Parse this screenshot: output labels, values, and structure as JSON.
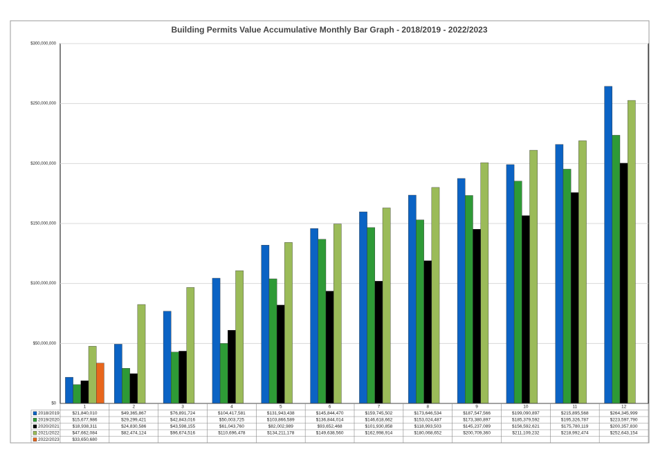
{
  "chart_data": {
    "type": "bar",
    "title": "Building Permits Value Accumulative Monthly Bar Graph - 2018/2019 - 2022/2023",
    "categories": [
      "1",
      "2",
      "3",
      "4",
      "5",
      "6",
      "7",
      "8",
      "9",
      "10",
      "11",
      "12"
    ],
    "ylim": [
      0,
      300000000
    ],
    "yticks": [
      {
        "value": 0,
        "label": "$0"
      },
      {
        "value": 50000000,
        "label": "$50,000,000"
      },
      {
        "value": 100000000,
        "label": "$100,000,000"
      },
      {
        "value": 150000000,
        "label": "$150,000,000"
      },
      {
        "value": 200000000,
        "label": "$200,000,000"
      },
      {
        "value": 250000000,
        "label": "$250,000,000"
      },
      {
        "value": 300000000,
        "label": "$300,000,000"
      }
    ],
    "grid": true,
    "series": [
      {
        "name": "2018/2019",
        "color": "#0b63c4",
        "values": [
          21840010,
          49365867,
          76891724,
          104417581,
          131943438,
          145844470,
          159745502,
          173646534,
          187547566,
          199090897,
          215895568,
          264345999
        ],
        "value_labels": [
          "$21,840,010",
          "$49,365,867",
          "$76,891,724",
          "$104,417,581",
          "$131,943,438",
          "$145,844,470",
          "$159,745,502",
          "$173,646,534",
          "$187,547,566",
          "$199,090,897",
          "$215,895,568",
          "$264,345,999"
        ]
      },
      {
        "name": "2019/2020",
        "color": "#2e9a36",
        "values": [
          15677986,
          29299421,
          42843016,
          50003725,
          103866589,
          136844014,
          146618662,
          153024487,
          173380897,
          185379592,
          195326787,
          223597790
        ],
        "value_labels": [
          "$15,677,986",
          "$29,299,421",
          "$42,843,016",
          "$50,003,725",
          "$103,866,589",
          "$136,844,014",
          "$146,618,662",
          "$153,024,487",
          "$173,380,897",
          "$185,379,592",
          "$195,326,787",
          "$223,597,790"
        ]
      },
      {
        "name": "2020/2021",
        "color": "#000000",
        "values": [
          18938311,
          24830586,
          43598155,
          61043760,
          82002989,
          93652468,
          101930858,
          118993503,
          145237089,
          156592621,
          175780119,
          200357830
        ],
        "value_labels": [
          "$18,938,311",
          "$24,830,586",
          "$43,598,155",
          "$61,043,760",
          "$82,002,989",
          "$93,652,468",
          "$101,930,858",
          "$118,993,503",
          "$145,237,089",
          "$156,592,621",
          "$175,780,119",
          "$200,357,830"
        ]
      },
      {
        "name": "2021/2022",
        "color": "#9bbb59",
        "values": [
          47662084,
          82474124,
          96674516,
          110696478,
          134211178,
          149638560,
          162998914,
          180068652,
          200709360,
          211109232,
          218992474,
          252643154
        ],
        "value_labels": [
          "$47,662,084",
          "$82,474,124",
          "$96,674,516",
          "$110,696,478",
          "$134,211,178",
          "$149,638,560",
          "$162,998,914",
          "$180,068,652",
          "$200,709,360",
          "$211,109,232",
          "$218,992,474",
          "$252,643,154"
        ]
      },
      {
        "name": "2022/2023",
        "color": "#e8661c",
        "values": [
          33650680,
          null,
          null,
          null,
          null,
          null,
          null,
          null,
          null,
          null,
          null,
          null
        ],
        "value_labels": [
          "$33,650,680",
          null,
          null,
          null,
          null,
          null,
          null,
          null,
          null,
          null,
          null,
          null
        ]
      }
    ]
  }
}
